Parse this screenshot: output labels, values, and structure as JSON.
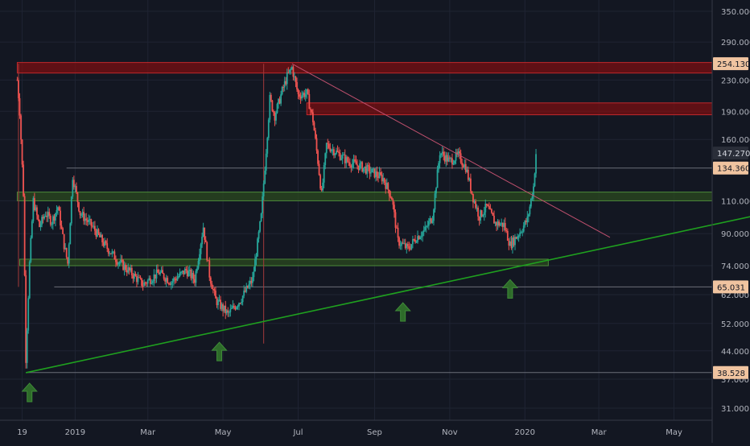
{
  "colors": {
    "background": "#131722",
    "grid": "#1f2433",
    "up": "#26a69a",
    "down": "#ef5350",
    "axis_text": "#b2b5be",
    "resistance_zone": "#7a0f12",
    "support_zone": "#2b4a1f",
    "trendline": "#1fa01f",
    "bounce_arrow": "#2e6b2a",
    "descending_line": "#c0506e",
    "level_line": "#6b6e78",
    "label_bg": "#f0c4a0",
    "current_label_bg": "#2a2e39"
  },
  "chart_data": {
    "type": "candlestick",
    "scale": "log",
    "y_tick_labels": [
      "350.000",
      "290.000",
      "230.000",
      "190.000",
      "160.000",
      "110.000",
      "90.000",
      "74.000",
      "62.000",
      "52.000",
      "44.000",
      "37.000",
      "31.000"
    ],
    "y_ticks": [
      350,
      290,
      230,
      190,
      160,
      110,
      90,
      74,
      62,
      52,
      44,
      37,
      31
    ],
    "x_tick_labels": [
      "19",
      "2019",
      "Mar",
      "May",
      "Jul",
      "Sep",
      "Nov",
      "2020",
      "Mar",
      "May"
    ],
    "x_ticks": [
      "2018-11-19",
      "2019-01-01",
      "2019-03-01",
      "2019-05-01",
      "2019-07-01",
      "2019-09-01",
      "2019-11-01",
      "2020-01-01",
      "2020-03-01",
      "2020-05-01"
    ],
    "price_labels": [
      {
        "text": "254.130",
        "value": 254.13,
        "style": "level"
      },
      {
        "text": "147.270",
        "value": 147.27,
        "style": "current"
      },
      {
        "text": "134.360",
        "value": 134.36,
        "style": "level"
      },
      {
        "text": "65.031",
        "value": 65.031,
        "style": "level"
      },
      {
        "text": "38.528",
        "value": 38.528,
        "style": "level"
      }
    ],
    "zones": [
      {
        "kind": "resistance",
        "low": 240,
        "high": 256,
        "from": "2018-11-15",
        "to": "2020-07-15"
      },
      {
        "kind": "resistance",
        "low": 186,
        "high": 200,
        "from": "2019-07-08",
        "to": "2020-07-15"
      },
      {
        "kind": "support",
        "low": 110,
        "high": 116,
        "from": "2018-11-15",
        "to": "2020-07-15"
      },
      {
        "kind": "support",
        "low": 74,
        "high": 77,
        "from": "2018-11-17",
        "to": "2020-01-20"
      }
    ],
    "horizontal_levels": [
      {
        "value": 134.36,
        "from": "2018-12-25",
        "to": "2020-07-15"
      },
      {
        "value": 65.031,
        "from": "2018-12-15",
        "to": "2020-07-15"
      },
      {
        "value": 38.528,
        "from": "2018-11-22",
        "to": "2020-07-15"
      }
    ],
    "vertical_markers": [
      {
        "date": "2018-11-16",
        "low": 65,
        "high": 254
      },
      {
        "date": "2019-06-03",
        "low": 46,
        "high": 254
      }
    ],
    "trendline_support": {
      "from": {
        "date": "2018-11-22",
        "value": 38.5
      },
      "to": {
        "date": "2020-07-15",
        "value": 102
      }
    },
    "trendline_descending": {
      "from": {
        "date": "2019-06-26",
        "value": 254
      },
      "to": {
        "date": "2020-03-10",
        "value": 88
      }
    },
    "bounce_markers": [
      "2018-11-25",
      "2019-04-28",
      "2019-09-24",
      "2019-12-20"
    ],
    "price_path": [
      [
        "2018-11-15",
        230
      ],
      [
        "2018-11-17",
        190
      ],
      [
        "2018-11-20",
        115
      ],
      [
        "2018-11-22",
        42
      ],
      [
        "2018-11-25",
        75
      ],
      [
        "2018-11-28",
        110
      ],
      [
        "2018-12-03",
        94
      ],
      [
        "2018-12-08",
        102
      ],
      [
        "2018-12-13",
        97
      ],
      [
        "2018-12-18",
        106
      ],
      [
        "2018-12-23",
        84
      ],
      [
        "2018-12-26",
        75
      ],
      [
        "2018-12-30",
        128
      ],
      [
        "2019-01-05",
        102
      ],
      [
        "2019-01-15",
        94
      ],
      [
        "2019-01-25",
        84
      ],
      [
        "2019-02-05",
        76
      ],
      [
        "2019-02-15",
        71
      ],
      [
        "2019-02-25",
        66
      ],
      [
        "2019-03-10",
        71
      ],
      [
        "2019-03-20",
        67
      ],
      [
        "2019-04-01",
        72
      ],
      [
        "2019-04-08",
        68
      ],
      [
        "2019-04-15",
        94
      ],
      [
        "2019-04-20",
        70
      ],
      [
        "2019-04-25",
        60
      ],
      [
        "2019-05-05",
        55
      ],
      [
        "2019-05-15",
        60
      ],
      [
        "2019-05-25",
        68
      ],
      [
        "2019-06-01",
        100
      ],
      [
        "2019-06-05",
        150
      ],
      [
        "2019-06-08",
        205
      ],
      [
        "2019-06-12",
        185
      ],
      [
        "2019-06-18",
        215
      ],
      [
        "2019-06-22",
        235
      ],
      [
        "2019-06-26",
        248
      ],
      [
        "2019-07-01",
        210
      ],
      [
        "2019-07-08",
        212
      ],
      [
        "2019-07-13",
        180
      ],
      [
        "2019-07-17",
        140
      ],
      [
        "2019-07-20",
        114
      ],
      [
        "2019-07-24",
        155
      ],
      [
        "2019-08-01",
        148
      ],
      [
        "2019-08-10",
        140
      ],
      [
        "2019-08-20",
        136
      ],
      [
        "2019-09-01",
        130
      ],
      [
        "2019-09-08",
        126
      ],
      [
        "2019-09-15",
        112
      ],
      [
        "2019-09-20",
        86
      ],
      [
        "2019-09-28",
        82
      ],
      [
        "2019-10-05",
        88
      ],
      [
        "2019-10-12",
        92
      ],
      [
        "2019-10-18",
        100
      ],
      [
        "2019-10-24",
        148
      ],
      [
        "2019-11-01",
        140
      ],
      [
        "2019-11-08",
        145
      ],
      [
        "2019-11-14",
        135
      ],
      [
        "2019-11-20",
        112
      ],
      [
        "2019-11-25",
        100
      ],
      [
        "2019-12-01",
        106
      ],
      [
        "2019-12-08",
        96
      ],
      [
        "2019-12-15",
        95
      ],
      [
        "2019-12-20",
        84
      ],
      [
        "2019-12-27",
        90
      ],
      [
        "2020-01-03",
        98
      ],
      [
        "2020-01-08",
        120
      ],
      [
        "2020-01-10",
        147
      ]
    ]
  }
}
